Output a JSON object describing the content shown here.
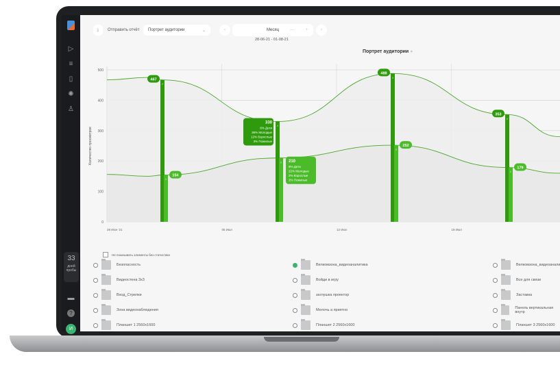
{
  "toolbar": {
    "send_report": "Отправить отчёт",
    "report_select": "Портрет аудитории",
    "period": "Месяц",
    "date_range": "28-06-21 - 01-08-21"
  },
  "sidebar": {
    "trial_days": "33",
    "trial_label": "дней пробы",
    "avatar": "И",
    "icons": [
      "logo",
      "play-icon",
      "filter-icon",
      "document-icon",
      "loader-icon",
      "user-icon",
      "monitor-icon",
      "help-icon"
    ]
  },
  "checkbox_label": "Не показывать элементы без статистики",
  "colors": {
    "dark_green": "#2e9a0c",
    "light_green": "#4cbb2a",
    "line": "#4aa82a"
  },
  "chart_data": {
    "type": "line",
    "title": "Портрет аудитории",
    "ylabel": "Количество просмотров",
    "ylim": [
      0,
      500
    ],
    "yticks": [
      "0",
      "100",
      "200",
      "300",
      "400",
      "500"
    ],
    "xticks": [
      "28 Июн '21",
      "05 Июл",
      "12 Июл",
      "19 Июл"
    ],
    "grid": true,
    "series": [
      {
        "values": [
          467,
          330,
          488,
          353
        ]
      },
      {
        "values": [
          154,
          210,
          252,
          179
        ]
      }
    ],
    "tooltips": [
      {
        "value": "330",
        "lines": [
          "8% Дети",
          "36% Молодые",
          "12% Взрослые",
          "3% Пожилые"
        ]
      },
      {
        "value": "210",
        "lines": [
          "9% Дети",
          "22% Молодые",
          "2% Взрослые",
          "2% Пожилые"
        ]
      }
    ]
  },
  "items": [
    [
      "Безопасность",
      "Велкомзона_видеоаналитика",
      "Велкомзона_видеоаналитика"
    ],
    [
      "Видеостена 3х3",
      "Войди в игру",
      "Все для связи"
    ],
    [
      "Вход_Стрелки",
      "заглушка проектор",
      "Заставка"
    ],
    [
      "Зона видеонаблюдения",
      "Мелочь а приятно",
      "Панель вертикальная внутр"
    ],
    [
      "Планшет 1 2560х1600",
      "Планшет 2 2560х1600",
      "Планшет 3 2560х1600"
    ]
  ],
  "selected_item": "Велкомзона_видеоаналитика"
}
